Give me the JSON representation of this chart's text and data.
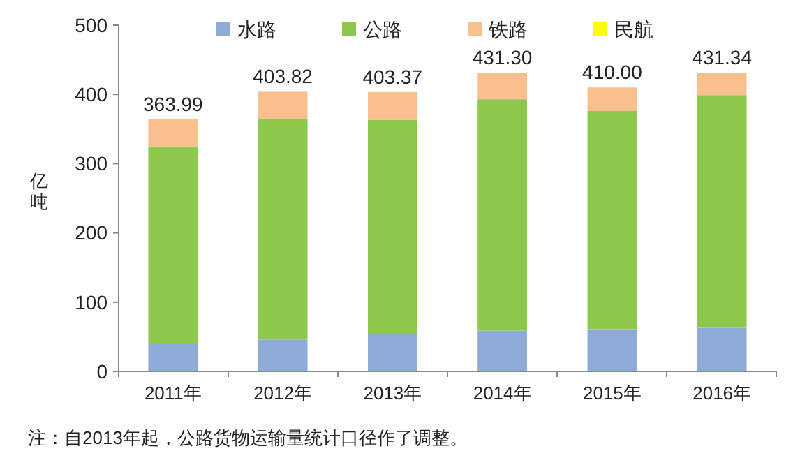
{
  "chart_data": {
    "type": "bar",
    "stacked": true,
    "ylabel": "亿吨",
    "categories": [
      "2011年",
      "2012年",
      "2013年",
      "2014年",
      "2015年",
      "2016年"
    ],
    "series": [
      {
        "name": "水路",
        "color": "#8eaad6",
        "values": [
          40,
          46,
          54,
          59,
          61,
          63
        ]
      },
      {
        "name": "公路",
        "color": "#8cc84b",
        "values": [
          285,
          319,
          309,
          334,
          315,
          336
        ]
      },
      {
        "name": "铁路",
        "color": "#f9bf8f",
        "values": [
          38.99,
          38.82,
          40.37,
          38.3,
          34.0,
          32.34
        ]
      },
      {
        "name": "民航",
        "color": "#ffff00",
        "values": [
          0,
          0,
          0,
          0,
          0,
          0
        ]
      }
    ],
    "totals": [
      "363.99",
      "403.82",
      "403.37",
      "431.30",
      "410.00",
      "431.34"
    ],
    "ylim": [
      0,
      500
    ],
    "yticks": [
      0,
      100,
      200,
      300,
      400,
      500
    ],
    "grid": false,
    "legend": "top",
    "annotations": [
      "注：自2013年起，公路货物运输量统计口径作了调整。"
    ]
  }
}
